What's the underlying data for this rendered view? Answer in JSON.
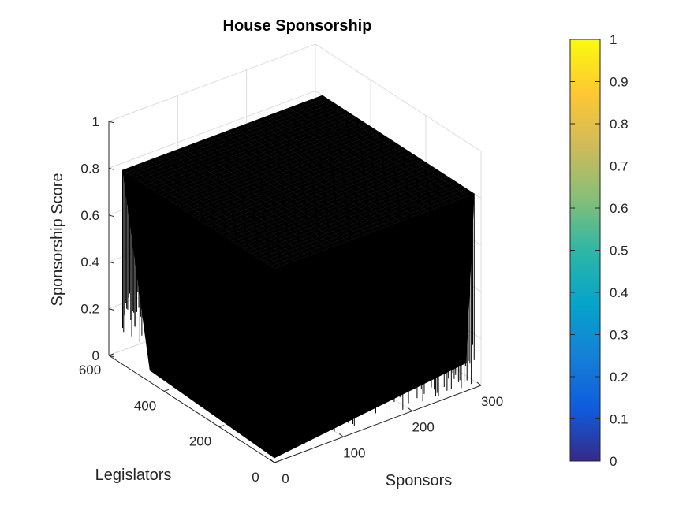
{
  "chart_data": {
    "type": "surface",
    "title": "House Sponsorship",
    "xlabel": "Sponsors",
    "ylabel": "Legislators",
    "zlabel": "Sponsorship Score",
    "xlim": [
      0,
      300
    ],
    "ylim": [
      0,
      600
    ],
    "zlim": [
      0,
      1
    ],
    "x_ticks": [
      "0",
      "100",
      "200",
      "300"
    ],
    "y_ticks": [
      "0",
      "200",
      "400",
      "600"
    ],
    "z_ticks": [
      "0",
      "0.2",
      "0.4",
      "0.6",
      "0.8",
      "1"
    ],
    "surface_extent": {
      "x": [
        0,
        290
      ],
      "y": [
        0,
        550
      ]
    },
    "surface_level_range": [
      0,
      0.83
    ],
    "surface_color": "#000000",
    "grid": true,
    "colorbar": {
      "colormap": "parula",
      "ticks": [
        "0",
        "0.1",
        "0.2",
        "0.3",
        "0.4",
        "0.5",
        "0.6",
        "0.7",
        "0.8",
        "0.9",
        "1"
      ],
      "limits": [
        0,
        1
      ],
      "stops": [
        "#352a87",
        "#0f5cdd",
        "#1481d6",
        "#06a4ca",
        "#2eb7a4",
        "#87bf77",
        "#d1bb59",
        "#fec832",
        "#f9fb0e"
      ]
    }
  }
}
